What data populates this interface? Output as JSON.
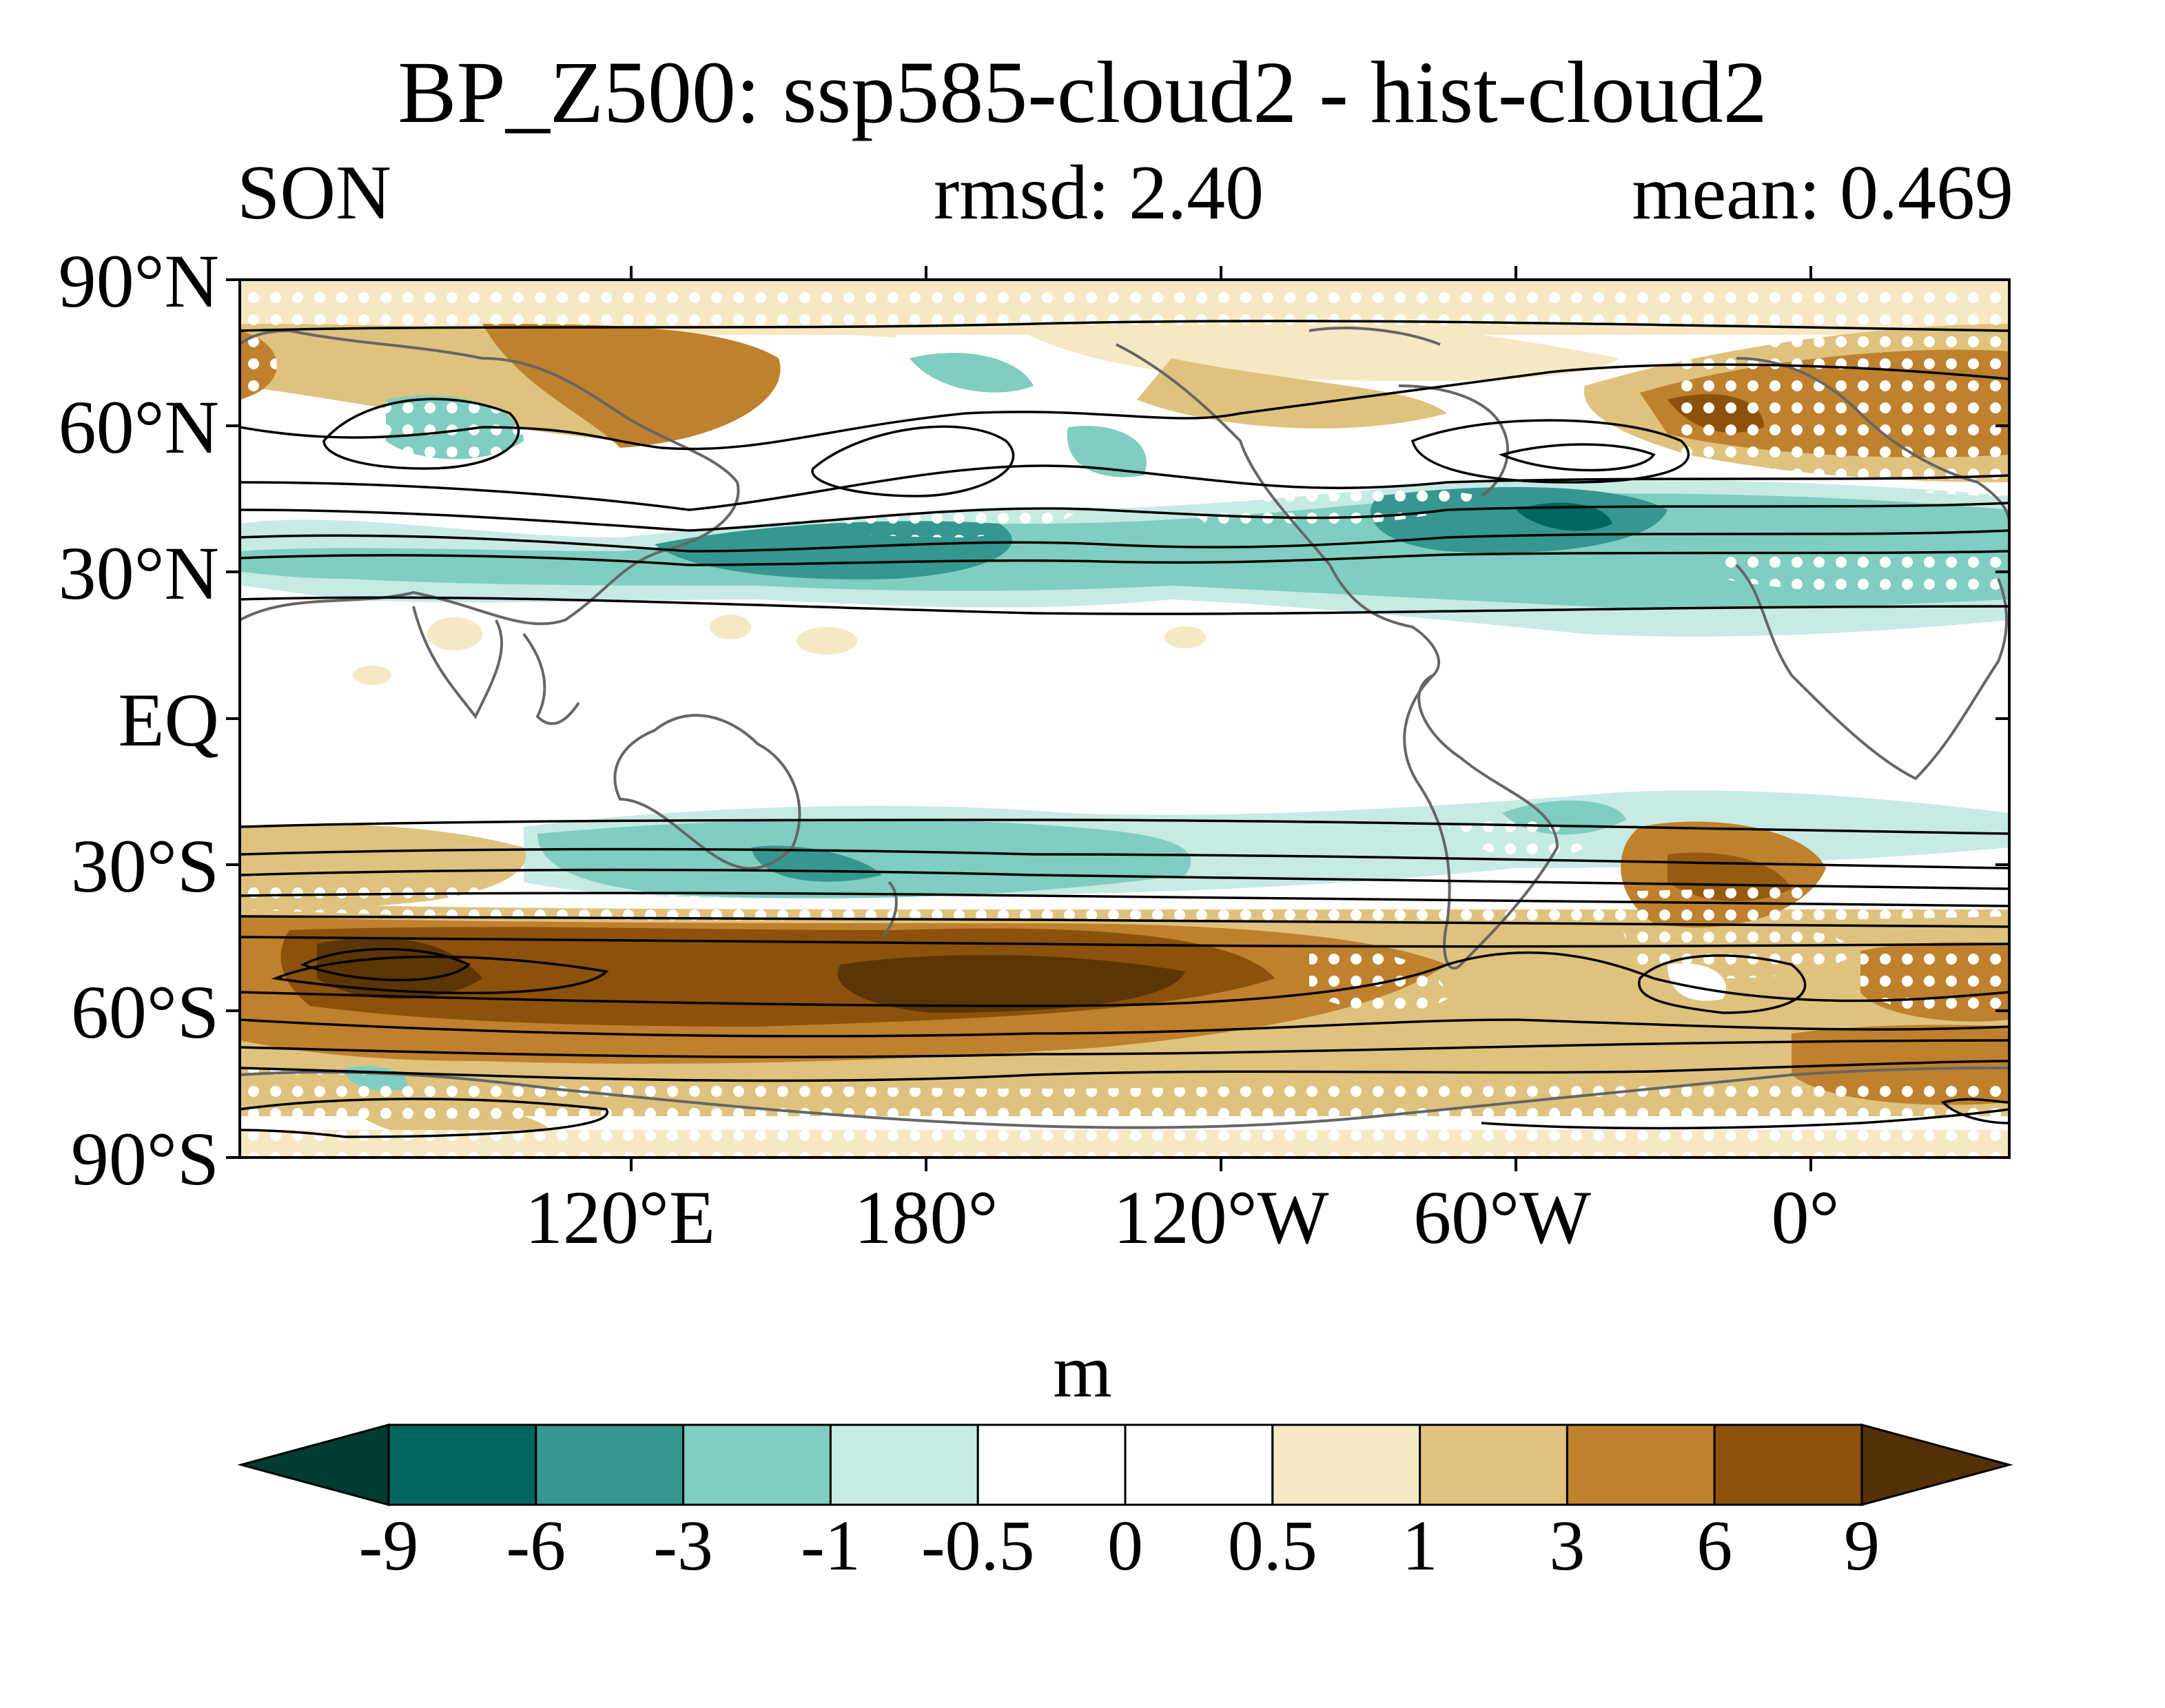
{
  "title": "BP_Z500: ssp585-cloud2 - hist-cloud2",
  "season": "SON",
  "rmsd": "rmsd: 2.40",
  "mean": "mean: 0.469",
  "lat_labels": [
    "90°N",
    "60°N",
    "30°N",
    "EQ",
    "30°S",
    "60°S",
    "90°S"
  ],
  "lon_labels": [
    "120°E",
    "180°",
    "120°W",
    "60°W",
    "0°"
  ],
  "colorbar": {
    "unit": "m",
    "levels": [
      "-9",
      "-6",
      "-3",
      "-1",
      "-0.5",
      "0",
      "0.5",
      "1",
      "3",
      "6",
      "9"
    ],
    "colors": [
      "#003c30",
      "#01665e",
      "#35978f",
      "#80cdc1",
      "#c7eae5",
      "#ffffff",
      "#ffffff",
      "#f6e8c3",
      "#dfc27d",
      "#bf812d",
      "#8c510a",
      "#543005"
    ]
  },
  "map": {
    "projection": "cylindrical equidistant",
    "center_lon": "120°W",
    "stippling": "white dots",
    "contours": "black lines"
  }
}
